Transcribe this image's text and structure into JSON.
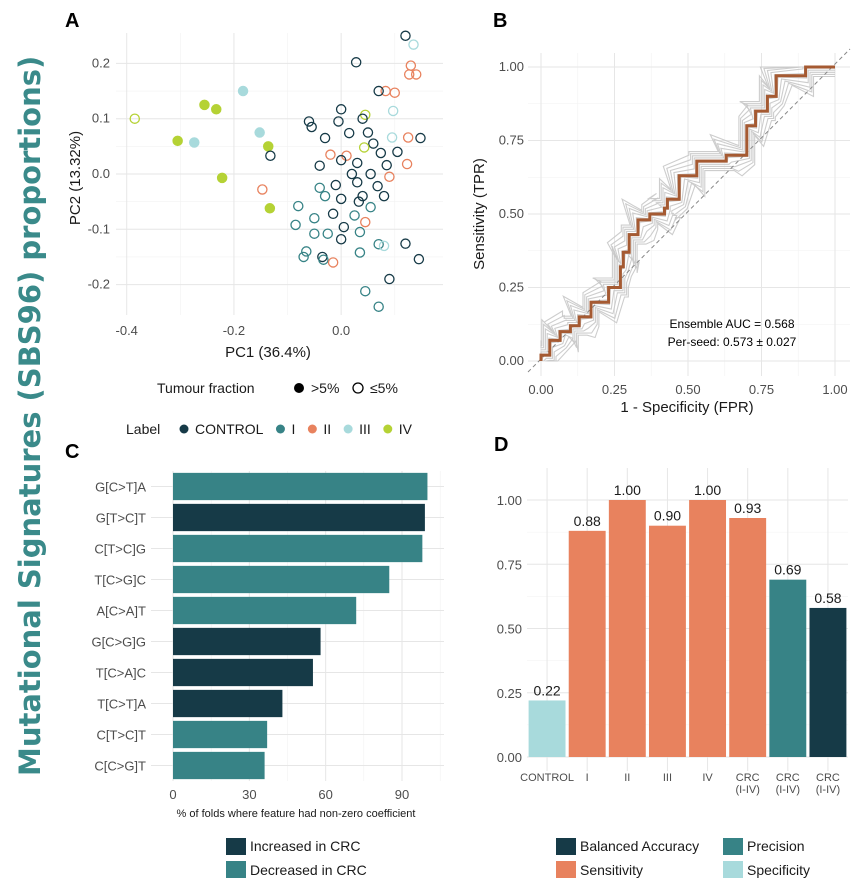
{
  "side_title": "Mutational Signatures  (SBS96) proportions)",
  "colors": {
    "CONTROL": "#163a47",
    "I": "#378386",
    "II": "#e8825e",
    "III": "#a8dadc",
    "IV": "#b5d235",
    "side_title": "#3a8a8a",
    "roc_seed": "#c8c8c8",
    "roc_ensemble": "#a55a32"
  },
  "chart_data": [
    {
      "panel": "A",
      "type": "scatter",
      "xlabel": "PC1 (36.4%)",
      "ylabel": "PC2 (13.32%)",
      "xlim": [
        -0.42,
        0.19
      ],
      "ylim": [
        -0.255,
        0.255
      ],
      "xticks": [
        "-0.4",
        "-0.2",
        "0.0"
      ],
      "xtick_values": [
        -0.4,
        -0.2,
        0.0
      ],
      "yticks": [
        "0.2",
        "0.1",
        "0.0",
        "-0.1",
        "-0.2"
      ],
      "ytick_values": [
        0.2,
        0.1,
        0.0,
        -0.1,
        -0.2
      ],
      "legend_shape_title": "Tumour fraction",
      "legend_shape_items": [
        ">5%",
        "≤5%"
      ],
      "legend_color_title": "Label",
      "legend_color_items": [
        "CONTROL",
        "I",
        "II",
        "III",
        "IV"
      ],
      "points": [
        {
          "x": -0.385,
          "y": 0.1,
          "label": "IV",
          "filled": false
        },
        {
          "x": -0.305,
          "y": 0.06,
          "label": "IV",
          "filled": true
        },
        {
          "x": -0.255,
          "y": 0.125,
          "label": "IV",
          "filled": true
        },
        {
          "x": -0.233,
          "y": 0.117,
          "label": "IV",
          "filled": true
        },
        {
          "x": -0.222,
          "y": -0.007,
          "label": "IV",
          "filled": true
        },
        {
          "x": -0.136,
          "y": 0.05,
          "label": "IV",
          "filled": true
        },
        {
          "x": -0.133,
          "y": -0.062,
          "label": "IV",
          "filled": true
        },
        {
          "x": -0.274,
          "y": 0.057,
          "label": "III",
          "filled": true
        },
        {
          "x": -0.183,
          "y": 0.15,
          "label": "III",
          "filled": true
        },
        {
          "x": -0.152,
          "y": 0.075,
          "label": "III",
          "filled": true
        },
        {
          "x": -0.132,
          "y": 0.033,
          "label": "CONTROL",
          "filled": false
        },
        {
          "x": -0.147,
          "y": -0.028,
          "label": "II",
          "filled": false
        },
        {
          "x": 0.12,
          "y": 0.25,
          "label": "CONTROL",
          "filled": false
        },
        {
          "x": 0.135,
          "y": 0.234,
          "label": "III",
          "filled": false
        },
        {
          "x": 0.028,
          "y": 0.202,
          "label": "CONTROL",
          "filled": false
        },
        {
          "x": 0.13,
          "y": 0.196,
          "label": "II",
          "filled": false
        },
        {
          "x": 0.14,
          "y": 0.18,
          "label": "II",
          "filled": false
        },
        {
          "x": 0.127,
          "y": 0.18,
          "label": "II",
          "filled": false
        },
        {
          "x": 0.083,
          "y": 0.15,
          "label": "II",
          "filled": false
        },
        {
          "x": 0.07,
          "y": 0.15,
          "label": "CONTROL",
          "filled": false
        },
        {
          "x": 0.1,
          "y": 0.147,
          "label": "II",
          "filled": false
        },
        {
          "x": 0.097,
          "y": 0.114,
          "label": "III",
          "filled": false
        },
        {
          "x": 0.0,
          "y": 0.117,
          "label": "CONTROL",
          "filled": false
        },
        {
          "x": 0.045,
          "y": 0.107,
          "label": "IV",
          "filled": false
        },
        {
          "x": 0.04,
          "y": 0.1,
          "label": "CONTROL",
          "filled": false
        },
        {
          "x": -0.06,
          "y": 0.095,
          "label": "CONTROL",
          "filled": false
        },
        {
          "x": -0.055,
          "y": 0.085,
          "label": "CONTROL",
          "filled": false
        },
        {
          "x": -0.005,
          "y": 0.095,
          "label": "CONTROL",
          "filled": false
        },
        {
          "x": 0.148,
          "y": 0.065,
          "label": "CONTROL",
          "filled": false
        },
        {
          "x": 0.095,
          "y": 0.066,
          "label": "III",
          "filled": false
        },
        {
          "x": 0.125,
          "y": 0.066,
          "label": "II",
          "filled": false
        },
        {
          "x": 0.015,
          "y": 0.074,
          "label": "CONTROL",
          "filled": false
        },
        {
          "x": 0.05,
          "y": 0.075,
          "label": "CONTROL",
          "filled": false
        },
        {
          "x": -0.03,
          "y": 0.065,
          "label": "CONTROL",
          "filled": false
        },
        {
          "x": 0.06,
          "y": 0.055,
          "label": "CONTROL",
          "filled": false
        },
        {
          "x": 0.043,
          "y": 0.048,
          "label": "IV",
          "filled": false
        },
        {
          "x": 0.074,
          "y": 0.038,
          "label": "CONTROL",
          "filled": false
        },
        {
          "x": 0.105,
          "y": 0.04,
          "label": "CONTROL",
          "filled": false
        },
        {
          "x": -0.02,
          "y": 0.035,
          "label": "II",
          "filled": false
        },
        {
          "x": 0.01,
          "y": 0.033,
          "label": "II",
          "filled": false
        },
        {
          "x": 0.0,
          "y": 0.025,
          "label": "CONTROL",
          "filled": false
        },
        {
          "x": 0.03,
          "y": 0.02,
          "label": "CONTROL",
          "filled": false
        },
        {
          "x": -0.04,
          "y": 0.015,
          "label": "CONTROL",
          "filled": false
        },
        {
          "x": 0.085,
          "y": 0.016,
          "label": "CONTROL",
          "filled": false
        },
        {
          "x": 0.123,
          "y": 0.018,
          "label": "II",
          "filled": false
        },
        {
          "x": 0.02,
          "y": 0.0,
          "label": "CONTROL",
          "filled": false
        },
        {
          "x": 0.055,
          "y": 0.0,
          "label": "CONTROL",
          "filled": false
        },
        {
          "x": 0.09,
          "y": -0.005,
          "label": "II",
          "filled": false
        },
        {
          "x": -0.04,
          "y": -0.025,
          "label": "I",
          "filled": false
        },
        {
          "x": -0.01,
          "y": -0.02,
          "label": "CONTROL",
          "filled": false
        },
        {
          "x": 0.03,
          "y": -0.015,
          "label": "CONTROL",
          "filled": false
        },
        {
          "x": 0.068,
          "y": -0.022,
          "label": "CONTROL",
          "filled": false
        },
        {
          "x": -0.03,
          "y": -0.04,
          "label": "I",
          "filled": false
        },
        {
          "x": 0.0,
          "y": -0.045,
          "label": "CONTROL",
          "filled": false
        },
        {
          "x": 0.04,
          "y": -0.04,
          "label": "CONTROL",
          "filled": false
        },
        {
          "x": 0.08,
          "y": -0.04,
          "label": "CONTROL",
          "filled": false
        },
        {
          "x": -0.08,
          "y": -0.058,
          "label": "I",
          "filled": false
        },
        {
          "x": 0.033,
          "y": -0.05,
          "label": "CONTROL",
          "filled": false
        },
        {
          "x": 0.055,
          "y": -0.06,
          "label": "I",
          "filled": false
        },
        {
          "x": -0.015,
          "y": -0.072,
          "label": "CONTROL",
          "filled": false
        },
        {
          "x": -0.05,
          "y": -0.08,
          "label": "I",
          "filled": false
        },
        {
          "x": 0.025,
          "y": -0.075,
          "label": "I",
          "filled": false
        },
        {
          "x": -0.085,
          "y": -0.092,
          "label": "I",
          "filled": false
        },
        {
          "x": 0.045,
          "y": -0.087,
          "label": "II",
          "filled": false
        },
        {
          "x": 0.005,
          "y": -0.096,
          "label": "CONTROL",
          "filled": false
        },
        {
          "x": -0.05,
          "y": -0.108,
          "label": "I",
          "filled": false
        },
        {
          "x": -0.025,
          "y": -0.108,
          "label": "I",
          "filled": false
        },
        {
          "x": 0.035,
          "y": -0.105,
          "label": "I",
          "filled": false
        },
        {
          "x": 0.0,
          "y": -0.118,
          "label": "CONTROL",
          "filled": false
        },
        {
          "x": 0.12,
          "y": -0.126,
          "label": "CONTROL",
          "filled": false
        },
        {
          "x": 0.07,
          "y": -0.127,
          "label": "I",
          "filled": false
        },
        {
          "x": 0.08,
          "y": -0.13,
          "label": "III",
          "filled": false
        },
        {
          "x": -0.065,
          "y": -0.14,
          "label": "I",
          "filled": false
        },
        {
          "x": -0.07,
          "y": -0.15,
          "label": "I",
          "filled": false
        },
        {
          "x": -0.035,
          "y": -0.15,
          "label": "CONTROL",
          "filled": false
        },
        {
          "x": -0.033,
          "y": -0.155,
          "label": "I",
          "filled": false
        },
        {
          "x": 0.035,
          "y": -0.142,
          "label": "I",
          "filled": false
        },
        {
          "x": -0.015,
          "y": -0.16,
          "label": "II",
          "filled": false
        },
        {
          "x": 0.145,
          "y": -0.154,
          "label": "CONTROL",
          "filled": false
        },
        {
          "x": 0.09,
          "y": -0.19,
          "label": "CONTROL",
          "filled": false
        },
        {
          "x": 0.045,
          "y": -0.212,
          "label": "I",
          "filled": false
        },
        {
          "x": 0.07,
          "y": -0.24,
          "label": "I",
          "filled": false
        }
      ]
    },
    {
      "panel": "B",
      "type": "line",
      "xlabel": "1 - Specificity (FPR)",
      "ylabel": "Sensitivity (TPR)",
      "xlim": [
        0,
        1
      ],
      "ylim": [
        0,
        1
      ],
      "xticks": [
        "0.00",
        "0.25",
        "0.50",
        "0.75",
        "1.00"
      ],
      "yticks": [
        "0.00",
        "0.25",
        "0.50",
        "0.75",
        "1.00"
      ],
      "tick_values": [
        0,
        0.25,
        0.5,
        0.75,
        1
      ],
      "annotation_auc": "Ensemble AUC = 0.568",
      "annotation_seed": "Per-seed: 0.573 ± 0.027",
      "ensemble": {
        "x": [
          0,
          0,
          0.03,
          0.03,
          0.065,
          0.065,
          0.1,
          0.1,
          0.13,
          0.13,
          0.17,
          0.17,
          0.23,
          0.23,
          0.27,
          0.27,
          0.28,
          0.28,
          0.3,
          0.3,
          0.33,
          0.33,
          0.37,
          0.37,
          0.42,
          0.42,
          0.43,
          0.43,
          0.47,
          0.47,
          0.53,
          0.53,
          0.63,
          0.63,
          0.7,
          0.7,
          0.73,
          0.73,
          0.77,
          0.77,
          0.8,
          0.8,
          0.9,
          0.9,
          1.0
        ],
        "y": [
          0,
          0.02,
          0.02,
          0.07,
          0.07,
          0.1,
          0.1,
          0.12,
          0.12,
          0.15,
          0.15,
          0.2,
          0.2,
          0.25,
          0.25,
          0.32,
          0.32,
          0.37,
          0.37,
          0.43,
          0.43,
          0.48,
          0.48,
          0.5,
          0.5,
          0.52,
          0.52,
          0.55,
          0.55,
          0.63,
          0.63,
          0.68,
          0.68,
          0.7,
          0.7,
          0.8,
          0.8,
          0.85,
          0.85,
          0.9,
          0.9,
          0.97,
          0.97,
          1.0,
          1.0
        ]
      },
      "seed_curve_count": 10
    },
    {
      "panel": "C",
      "type": "bar",
      "orientation": "horizontal",
      "xlabel": "% of folds where feature had non-zero coefficient",
      "xlim": [
        0,
        115
      ],
      "xticks": [
        "0",
        "30",
        "60",
        "90"
      ],
      "xtick_values": [
        0,
        30,
        60,
        90
      ],
      "categories": [
        "G[C>T]A",
        "G[T>C]T",
        "C[T>C]G",
        "T[C>G]C",
        "A[C>A]T",
        "G[C>G]G",
        "T[C>A]C",
        "T[C>T]A",
        "C[T>C]T",
        "C[C>G]T"
      ],
      "values": [
        100,
        99,
        98,
        85,
        72,
        58,
        55,
        43,
        37,
        36
      ],
      "direction": [
        "Decreased in CRC",
        "Increased in CRC",
        "Decreased in CRC",
        "Decreased in CRC",
        "Decreased in CRC",
        "Increased in CRC",
        "Increased in CRC",
        "Increased in CRC",
        "Decreased in CRC",
        "Decreased in CRC"
      ],
      "legend": [
        "Increased in CRC",
        "Decreased in CRC"
      ],
      "legend_colors": [
        "#163a47",
        "#378386"
      ]
    },
    {
      "panel": "D",
      "type": "bar",
      "categories": [
        "CONTROL",
        "I",
        "II",
        "III",
        "IV",
        "CRC\n(I-IV)",
        "CRC\n(I-IV)",
        "CRC\n(I-IV)"
      ],
      "values": [
        0.22,
        0.88,
        1.0,
        0.9,
        1.0,
        0.93,
        0.69,
        0.58
      ],
      "value_labels": [
        "0.22",
        "0.88",
        "1.00",
        "0.90",
        "1.00",
        "0.93",
        "0.69",
        "0.58"
      ],
      "metric": [
        "Specificity",
        "Sensitivity",
        "Sensitivity",
        "Sensitivity",
        "Sensitivity",
        "Sensitivity",
        "Precision",
        "Balanced Accuracy"
      ],
      "ylim": [
        0,
        1.1
      ],
      "yticks": [
        "0.00",
        "0.25",
        "0.50",
        "0.75",
        "1.00"
      ],
      "ytick_values": [
        0,
        0.25,
        0.5,
        0.75,
        1
      ],
      "legend": [
        "Balanced Accuracy",
        "Precision",
        "Sensitivity",
        "Specificity"
      ],
      "legend_colors": [
        "#163a47",
        "#378386",
        "#e8825e",
        "#a8dadc"
      ]
    }
  ]
}
